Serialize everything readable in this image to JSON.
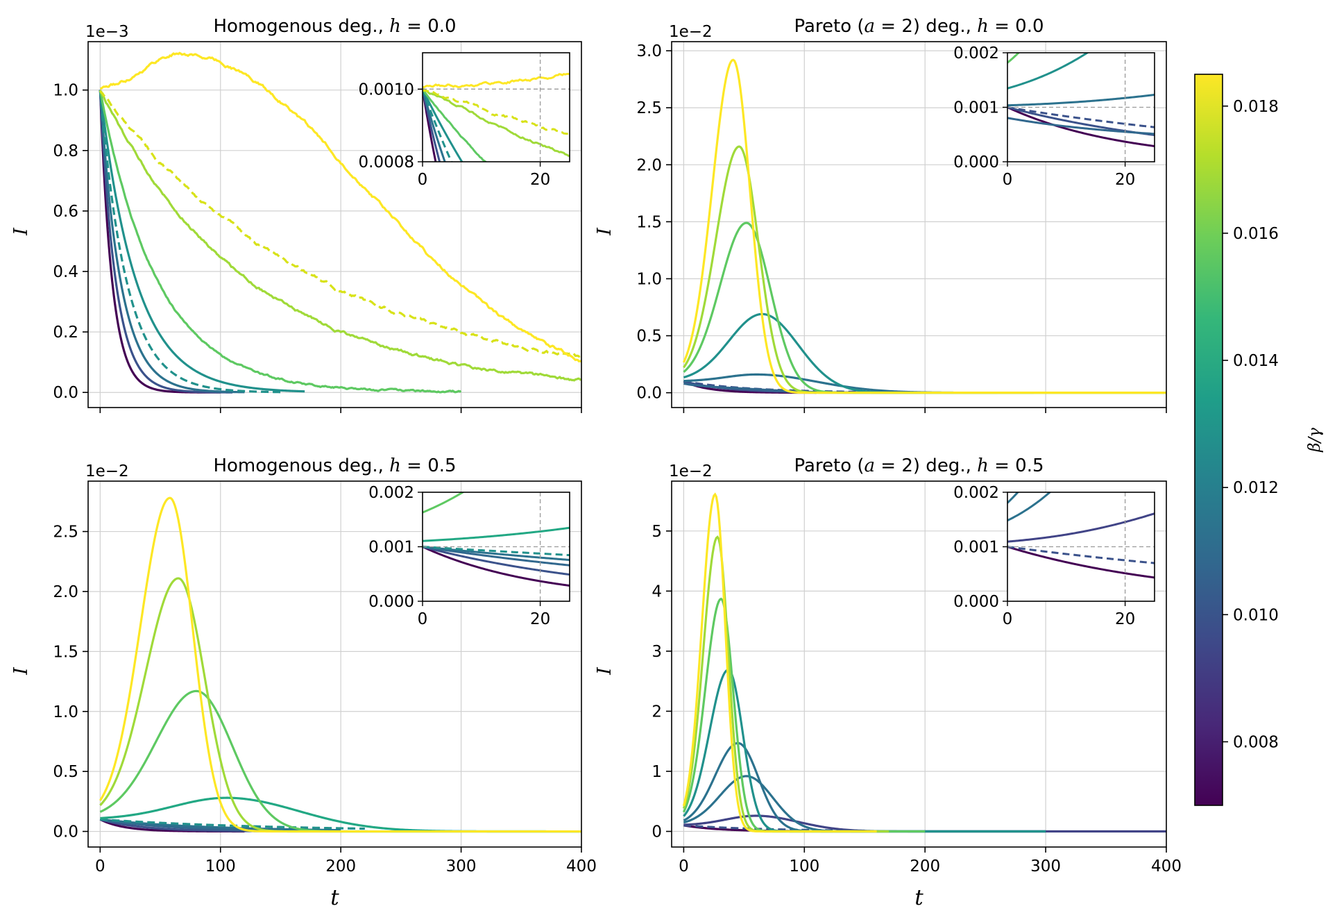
{
  "chart_data": [
    {
      "type": "line",
      "title": "Homogenous deg., h = 0.0",
      "title_parts": [
        "Homogenous deg., ",
        "h",
        " = 0.0"
      ],
      "ylabel": "I",
      "xlabel": "",
      "offset_text": "1e−3",
      "xlim": [
        -10,
        400
      ],
      "ylim": [
        -5e-05,
        0.00116
      ],
      "xticks": [
        0,
        100,
        200,
        300,
        400
      ],
      "yticks": [
        0,
        0.0002,
        0.0004,
        0.0006,
        0.0008,
        0.001
      ],
      "ytick_labels": [
        "0.0",
        "0.2",
        "0.4",
        "0.6",
        "0.8",
        "1.0"
      ],
      "show_xtick_labels": false,
      "grid": true,
      "series": [
        {
          "bg": 0.0071,
          "color": "#440154",
          "style": "solid",
          "t_end": 100,
          "model": "decay",
          "tau": 10,
          "noise": 0
        },
        {
          "bg": 0.0088,
          "color": "#3b528b",
          "style": "solid",
          "t_end": 110,
          "model": "decay",
          "tau": 13,
          "noise": 0
        },
        {
          "bg": 0.0107,
          "color": "#2c728e",
          "style": "solid",
          "t_end": 120,
          "model": "decay",
          "tau": 17,
          "noise": 0
        },
        {
          "bg": 0.0118,
          "color": "#21918c",
          "style": "dashed",
          "t_end": 150,
          "model": "decay",
          "tau": 22,
          "noise": 0
        },
        {
          "bg": 0.0127,
          "color": "#21918c",
          "style": "solid",
          "t_end": 170,
          "model": "decay",
          "tau": 30,
          "noise": 0
        },
        {
          "bg": 0.0145,
          "color": "#5ec962",
          "style": "solid",
          "t_end": 300,
          "model": "decay",
          "tau": 48,
          "noise": 4e-06
        },
        {
          "bg": 0.0163,
          "color": "#a0da39",
          "style": "solid",
          "t_end": 400,
          "model": "decay",
          "tau": 125,
          "noise": 6e-06
        },
        {
          "bg": 0.0181,
          "color": "#d8e219",
          "style": "dashed",
          "t_end": 400,
          "model": "decay",
          "tau": 185,
          "noise": 7e-06
        },
        {
          "bg": 0.0185,
          "color": "#fde725",
          "style": "solid",
          "t_end": 400,
          "model": "bump",
          "base": 0.001,
          "peak": 0.00112,
          "tpk": 65,
          "tail": 155,
          "noise": 7e-06
        }
      ],
      "inset": {
        "xlim": [
          0,
          25
        ],
        "ylim": [
          0.0008,
          0.0011
        ],
        "xticks": [
          0,
          20
        ],
        "yticks": [
          0.0008,
          0.001
        ],
        "ytick_labels": [
          "0.0008",
          "0.0010"
        ],
        "ref_x": 20,
        "ref_y": 0.001
      }
    },
    {
      "type": "line",
      "title": "Pareto (a = 2) deg., h = 0.0",
      "title_parts": [
        "Pareto (",
        "a",
        " = 2) deg., ",
        "h",
        " = 0.0"
      ],
      "ylabel": "I",
      "xlabel": "",
      "offset_text": "1e−2",
      "xlim": [
        -10,
        400
      ],
      "ylim": [
        -0.0013,
        0.0308
      ],
      "xticks": [
        0,
        100,
        200,
        300,
        400
      ],
      "yticks": [
        0,
        0.005,
        0.01,
        0.015,
        0.02,
        0.025,
        0.03
      ],
      "ytick_labels": [
        "0.0",
        "0.5",
        "1.0",
        "1.5",
        "2.0",
        "2.5",
        "3.0"
      ],
      "show_xtick_labels": false,
      "grid": true,
      "series": [
        {
          "bg": 0.0071,
          "color": "#440154",
          "style": "solid",
          "t_end": 110,
          "model": "decay",
          "tau": 20,
          "noise": 0
        },
        {
          "bg": 0.0085,
          "color": "#3b528b",
          "style": "solid",
          "t_end": 150,
          "model": "decay",
          "tau": 35,
          "noise": 0
        },
        {
          "bg": 0.0095,
          "color": "#3b528b",
          "style": "dashed",
          "t_end": 170,
          "model": "decay",
          "tau": 55,
          "noise": 0
        },
        {
          "bg": 0.0105,
          "color": "#31688e",
          "style": "solid",
          "t_end": 180,
          "model": "bump",
          "base": 0.001,
          "peak": 0.0003,
          "tpk": 35,
          "tail": 40,
          "noise": 0
        },
        {
          "bg": 0.0118,
          "color": "#2c728e",
          "style": "solid",
          "t_end": 260,
          "model": "bump",
          "base": 0.001,
          "peak": 0.0016,
          "tpk": 60,
          "tail": 50,
          "noise": 0
        },
        {
          "bg": 0.0133,
          "color": "#21918c",
          "style": "solid",
          "t_end": 290,
          "model": "bump",
          "base": 0.001,
          "peak": 0.0069,
          "tpk": 65,
          "tail": 30,
          "noise": 0
        },
        {
          "bg": 0.015,
          "color": "#5ec962",
          "style": "solid",
          "t_end": 400,
          "model": "bump",
          "base": 0.001,
          "peak": 0.0149,
          "tpk": 52,
          "tail": 20,
          "noise": 0
        },
        {
          "bg": 0.0168,
          "color": "#a0da39",
          "style": "solid",
          "t_end": 400,
          "model": "bump",
          "base": 0.001,
          "peak": 0.0216,
          "tpk": 46,
          "tail": 16,
          "noise": 0
        },
        {
          "bg": 0.0185,
          "color": "#fde725",
          "style": "solid",
          "t_end": 400,
          "model": "bump",
          "base": 0.001,
          "peak": 0.0292,
          "tpk": 41,
          "tail": 14,
          "noise": 0
        }
      ],
      "inset": {
        "xlim": [
          0,
          25
        ],
        "ylim": [
          0,
          0.002
        ],
        "xticks": [
          0,
          20
        ],
        "yticks": [
          0,
          0.001,
          0.002
        ],
        "ytick_labels": [
          "0.000",
          "0.001",
          "0.002"
        ],
        "ref_x": 20,
        "ref_y": 0.001
      }
    },
    {
      "type": "line",
      "title": "Homogenous deg., h = 0.5",
      "title_parts": [
        "Homogenous deg., ",
        "h",
        " = 0.5"
      ],
      "ylabel": "I",
      "xlabel": "t",
      "offset_text": "1e−2",
      "xlim": [
        -10,
        400
      ],
      "ylim": [
        -0.0013,
        0.0292
      ],
      "xticks": [
        0,
        100,
        200,
        300,
        400
      ],
      "yticks": [
        0,
        0.005,
        0.01,
        0.015,
        0.02,
        0.025
      ],
      "ytick_labels": [
        "0.0",
        "0.5",
        "1.0",
        "1.5",
        "2.0",
        "2.5"
      ],
      "show_xtick_labels": true,
      "grid": true,
      "series": [
        {
          "bg": 0.0071,
          "color": "#440154",
          "style": "solid",
          "t_end": 120,
          "model": "decay",
          "tau": 20,
          "noise": 0
        },
        {
          "bg": 0.0085,
          "color": "#3b528b",
          "style": "solid",
          "t_end": 150,
          "model": "decay",
          "tau": 35,
          "noise": 0
        },
        {
          "bg": 0.0098,
          "color": "#31688e",
          "style": "solid",
          "t_end": 170,
          "model": "decay",
          "tau": 60,
          "noise": 0
        },
        {
          "bg": 0.011,
          "color": "#2c728e",
          "style": "solid",
          "t_end": 200,
          "model": "decay",
          "tau": 90,
          "noise": 0
        },
        {
          "bg": 0.0125,
          "color": "#21918c",
          "style": "dashed",
          "t_end": 220,
          "model": "decay",
          "tau": 150,
          "noise": 0
        },
        {
          "bg": 0.014,
          "color": "#22a884",
          "style": "solid",
          "t_end": 400,
          "model": "bump",
          "base": 0.001,
          "peak": 0.0028,
          "tpk": 105,
          "tail": 60,
          "noise": 0
        },
        {
          "bg": 0.0155,
          "color": "#5ec962",
          "style": "solid",
          "t_end": 400,
          "model": "bump",
          "base": 0.001,
          "peak": 0.0117,
          "tpk": 80,
          "tail": 30,
          "noise": 0
        },
        {
          "bg": 0.017,
          "color": "#a0da39",
          "style": "solid",
          "t_end": 400,
          "model": "bump",
          "base": 0.001,
          "peak": 0.0211,
          "tpk": 65,
          "tail": 22,
          "noise": 0
        },
        {
          "bg": 0.0185,
          "color": "#fde725",
          "style": "solid",
          "t_end": 400,
          "model": "bump",
          "base": 0.001,
          "peak": 0.0278,
          "tpk": 58,
          "tail": 19,
          "noise": 0
        }
      ],
      "inset": {
        "xlim": [
          0,
          25
        ],
        "ylim": [
          0,
          0.002
        ],
        "xticks": [
          0,
          20
        ],
        "yticks": [
          0,
          0.001,
          0.002
        ],
        "ytick_labels": [
          "0.000",
          "0.001",
          "0.002"
        ],
        "ref_x": 20,
        "ref_y": 0.001
      }
    },
    {
      "type": "line",
      "title": "Pareto (a = 2) deg., h = 0.5",
      "title_parts": [
        "Pareto (",
        "a",
        " = 2) deg., ",
        "h",
        " = 0.5"
      ],
      "ylabel": "I",
      "xlabel": "t",
      "offset_text": "1e−2",
      "xlim": [
        -10,
        400
      ],
      "ylim": [
        -0.0026,
        0.0583
      ],
      "xticks": [
        0,
        100,
        200,
        300,
        400
      ],
      "yticks": [
        0,
        0.01,
        0.02,
        0.03,
        0.04,
        0.05
      ],
      "ytick_labels": [
        "0",
        "1",
        "2",
        "3",
        "4",
        "5"
      ],
      "show_xtick_labels": true,
      "grid": true,
      "series": [
        {
          "bg": 0.0071,
          "color": "#440154",
          "style": "solid",
          "t_end": 120,
          "model": "decay",
          "tau": 30,
          "noise": 0
        },
        {
          "bg": 0.0085,
          "color": "#3b528b",
          "style": "dashed",
          "t_end": 150,
          "model": "decay",
          "tau": 70,
          "noise": 0
        },
        {
          "bg": 0.0095,
          "color": "#414487",
          "style": "solid",
          "t_end": 400,
          "model": "bump",
          "base": 0.001,
          "peak": 0.0026,
          "tpk": 60,
          "tail": 35,
          "noise": 0
        },
        {
          "bg": 0.0108,
          "color": "#2c728e",
          "style": "solid",
          "t_end": 300,
          "model": "bump",
          "base": 0.001,
          "peak": 0.0092,
          "tpk": 52,
          "tail": 22,
          "noise": 0
        },
        {
          "bg": 0.012,
          "color": "#2c728e",
          "style": "solid",
          "t_end": 300,
          "model": "bump",
          "base": 0.001,
          "peak": 0.0147,
          "tpk": 45,
          "tail": 17,
          "noise": 0
        },
        {
          "bg": 0.0135,
          "color": "#21918c",
          "style": "solid",
          "t_end": 300,
          "model": "bump",
          "base": 0.001,
          "peak": 0.0269,
          "tpk": 37,
          "tail": 12,
          "noise": 0
        },
        {
          "bg": 0.015,
          "color": "#5ec962",
          "style": "solid",
          "t_end": 200,
          "model": "bump",
          "base": 0.001,
          "peak": 0.0387,
          "tpk": 31,
          "tail": 10,
          "noise": 0
        },
        {
          "bg": 0.0168,
          "color": "#a0da39",
          "style": "solid",
          "t_end": 170,
          "model": "bump",
          "base": 0.001,
          "peak": 0.049,
          "tpk": 28,
          "tail": 9,
          "noise": 0
        },
        {
          "bg": 0.0185,
          "color": "#fde725",
          "style": "solid",
          "t_end": 160,
          "model": "bump",
          "base": 0.001,
          "peak": 0.0561,
          "tpk": 26,
          "tail": 8.5,
          "noise": 0
        }
      ],
      "inset": {
        "xlim": [
          0,
          25
        ],
        "ylim": [
          0,
          0.002
        ],
        "xticks": [
          0,
          20
        ],
        "yticks": [
          0,
          0.001,
          0.002
        ],
        "ytick_labels": [
          "0.000",
          "0.001",
          "0.002"
        ],
        "ref_x": 20,
        "ref_y": 0.001
      }
    }
  ],
  "colorbar": {
    "label": "β/γ",
    "range": [
      0.007,
      0.0185
    ],
    "ticks": [
      0.008,
      0.01,
      0.012,
      0.014,
      0.016,
      0.018
    ],
    "tick_labels": [
      "0.008",
      "0.010",
      "0.012",
      "0.014",
      "0.016",
      "0.018"
    ],
    "colormap": [
      "#440154",
      "#482878",
      "#3e4989",
      "#31688e",
      "#26828e",
      "#1f9e89",
      "#35b779",
      "#6ece58",
      "#b5de2b",
      "#fde725"
    ]
  }
}
